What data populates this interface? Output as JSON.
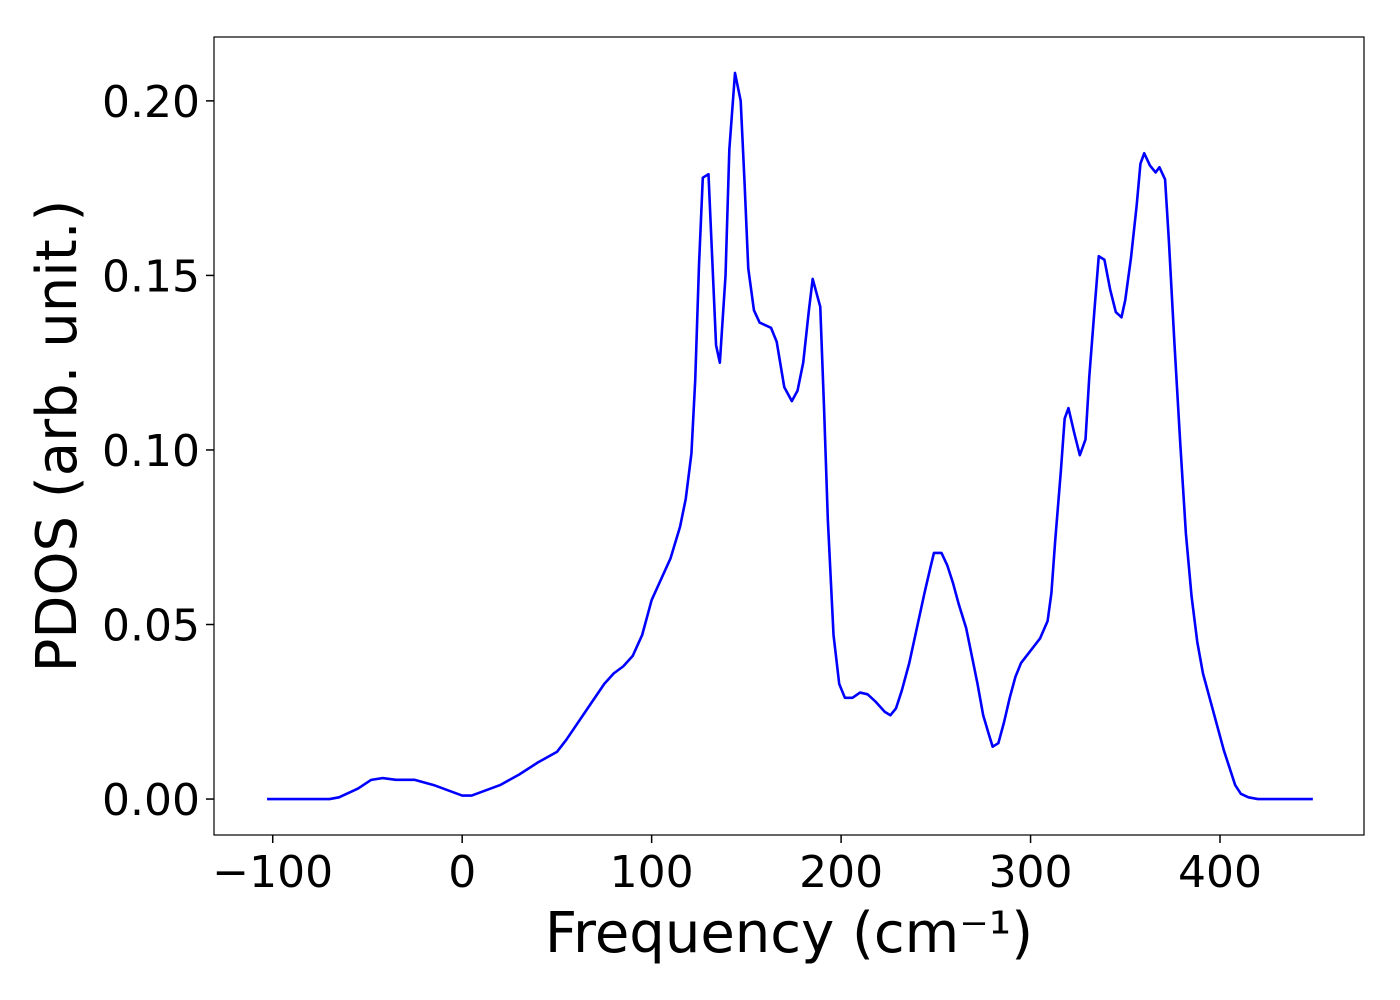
{
  "chart_data": {
    "type": "line",
    "xlabel": "Frequency (cm⁻¹)",
    "ylabel": "PDOS (arb. unit.)",
    "x": [
      -103,
      -70,
      -65,
      -55,
      -48,
      -42,
      -35,
      -25,
      -15,
      -5,
      0,
      5,
      15,
      20,
      30,
      40,
      50,
      55,
      65,
      75,
      80,
      85,
      90,
      95,
      100,
      105,
      110,
      115,
      118,
      121,
      123,
      125,
      127,
      130,
      134,
      136,
      139,
      141,
      144,
      147,
      149,
      151,
      154,
      157,
      163,
      166,
      170,
      174,
      177,
      180,
      183,
      185,
      189,
      191,
      193,
      196,
      199,
      202,
      206,
      210,
      214,
      218,
      223,
      226,
      229,
      232,
      236,
      240,
      244,
      247,
      249,
      253,
      256,
      259,
      262,
      266,
      269,
      272,
      275,
      278,
      280,
      283,
      286,
      289,
      292,
      295,
      300,
      305,
      309,
      311,
      313,
      316,
      318,
      320,
      323,
      326,
      329,
      331,
      334,
      336,
      339,
      342,
      345,
      348,
      350,
      353,
      356,
      358,
      360,
      363,
      366,
      368,
      371,
      373,
      376,
      379,
      382,
      385,
      388,
      391,
      395,
      399,
      402,
      405,
      408,
      411,
      415,
      420,
      449
    ],
    "series": [
      {
        "color": "#0000ff",
        "values": [
          0,
          0,
          0.0005,
          0.003,
          0.0055,
          0.006,
          0.0055,
          0.0055,
          0.004,
          0.002,
          0.001,
          0.001,
          0.003,
          0.004,
          0.007,
          0.0105,
          0.0135,
          0.017,
          0.025,
          0.033,
          0.036,
          0.038,
          0.041,
          0.047,
          0.057,
          0.063,
          0.069,
          0.078,
          0.086,
          0.099,
          0.12,
          0.153,
          0.178,
          0.179,
          0.13,
          0.125,
          0.15,
          0.186,
          0.208,
          0.2,
          0.177,
          0.152,
          0.14,
          0.1365,
          0.135,
          0.131,
          0.118,
          0.114,
          0.117,
          0.125,
          0.14,
          0.149,
          0.141,
          0.112,
          0.08,
          0.047,
          0.033,
          0.029,
          0.029,
          0.0305,
          0.03,
          0.028,
          0.025,
          0.024,
          0.026,
          0.031,
          0.039,
          0.049,
          0.059,
          0.066,
          0.0705,
          0.0705,
          0.067,
          0.062,
          0.056,
          0.049,
          0.041,
          0.033,
          0.024,
          0.0185,
          0.015,
          0.016,
          0.022,
          0.029,
          0.035,
          0.039,
          0.0425,
          0.046,
          0.051,
          0.059,
          0.074,
          0.094,
          0.109,
          0.112,
          0.105,
          0.0985,
          0.103,
          0.121,
          0.142,
          0.1555,
          0.1545,
          0.146,
          0.1395,
          0.138,
          0.143,
          0.155,
          0.17,
          0.182,
          0.185,
          0.1815,
          0.1795,
          0.181,
          0.1775,
          0.16,
          0.13,
          0.102,
          0.076,
          0.058,
          0.045,
          0.036,
          0.028,
          0.02,
          0.014,
          0.009,
          0.004,
          0.0015,
          0.0005,
          0,
          0
        ]
      }
    ],
    "xlim": [
      -131,
      476
    ],
    "ylim": [
      -0.0103,
      0.2183
    ],
    "xticks": [
      {
        "value": -100,
        "label": "−100"
      },
      0,
      100,
      200,
      300,
      400
    ],
    "yticks": [
      {
        "value": 0,
        "label": "0.00"
      },
      {
        "value": 0.05,
        "label": "0.05"
      },
      {
        "value": 0.1,
        "label": "0.10"
      },
      {
        "value": 0.15,
        "label": "0.15"
      },
      {
        "value": 0.2,
        "label": "0.20"
      }
    ]
  }
}
